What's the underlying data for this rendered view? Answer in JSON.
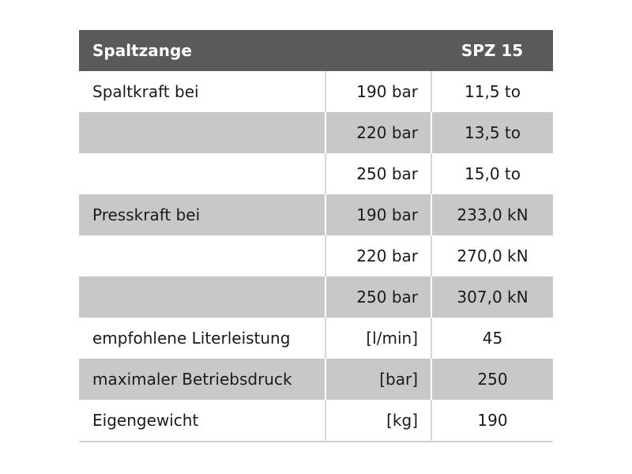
{
  "header": {
    "label": "Spaltzange",
    "model": "SPZ 15"
  },
  "rows": [
    {
      "label": "Spaltkraft bei",
      "condition": "190 bar",
      "value": "11,5 to"
    },
    {
      "label": "",
      "condition": "220 bar",
      "value": "13,5 to"
    },
    {
      "label": "",
      "condition": "250 bar",
      "value": "15,0 to"
    },
    {
      "label": "Presskraft bei",
      "condition": "190 bar",
      "value": "233,0 kN"
    },
    {
      "label": "",
      "condition": "220 bar",
      "value": "270,0 kN"
    },
    {
      "label": "",
      "condition": "250 bar",
      "value": "307,0 kN"
    },
    {
      "label": "empfohlene Literleistung",
      "condition": "[l/min]",
      "value": "45"
    },
    {
      "label": "maximaler Betriebsdruck",
      "condition": "[bar]",
      "value": "250"
    },
    {
      "label": "Eigengewicht",
      "condition": "[kg]",
      "value": "190"
    }
  ],
  "colors": {
    "header_bg": "#5a5a5a",
    "header_text": "#ffffff",
    "shade_bg": "#c8c8c8",
    "divider": "#d8d8d8"
  }
}
